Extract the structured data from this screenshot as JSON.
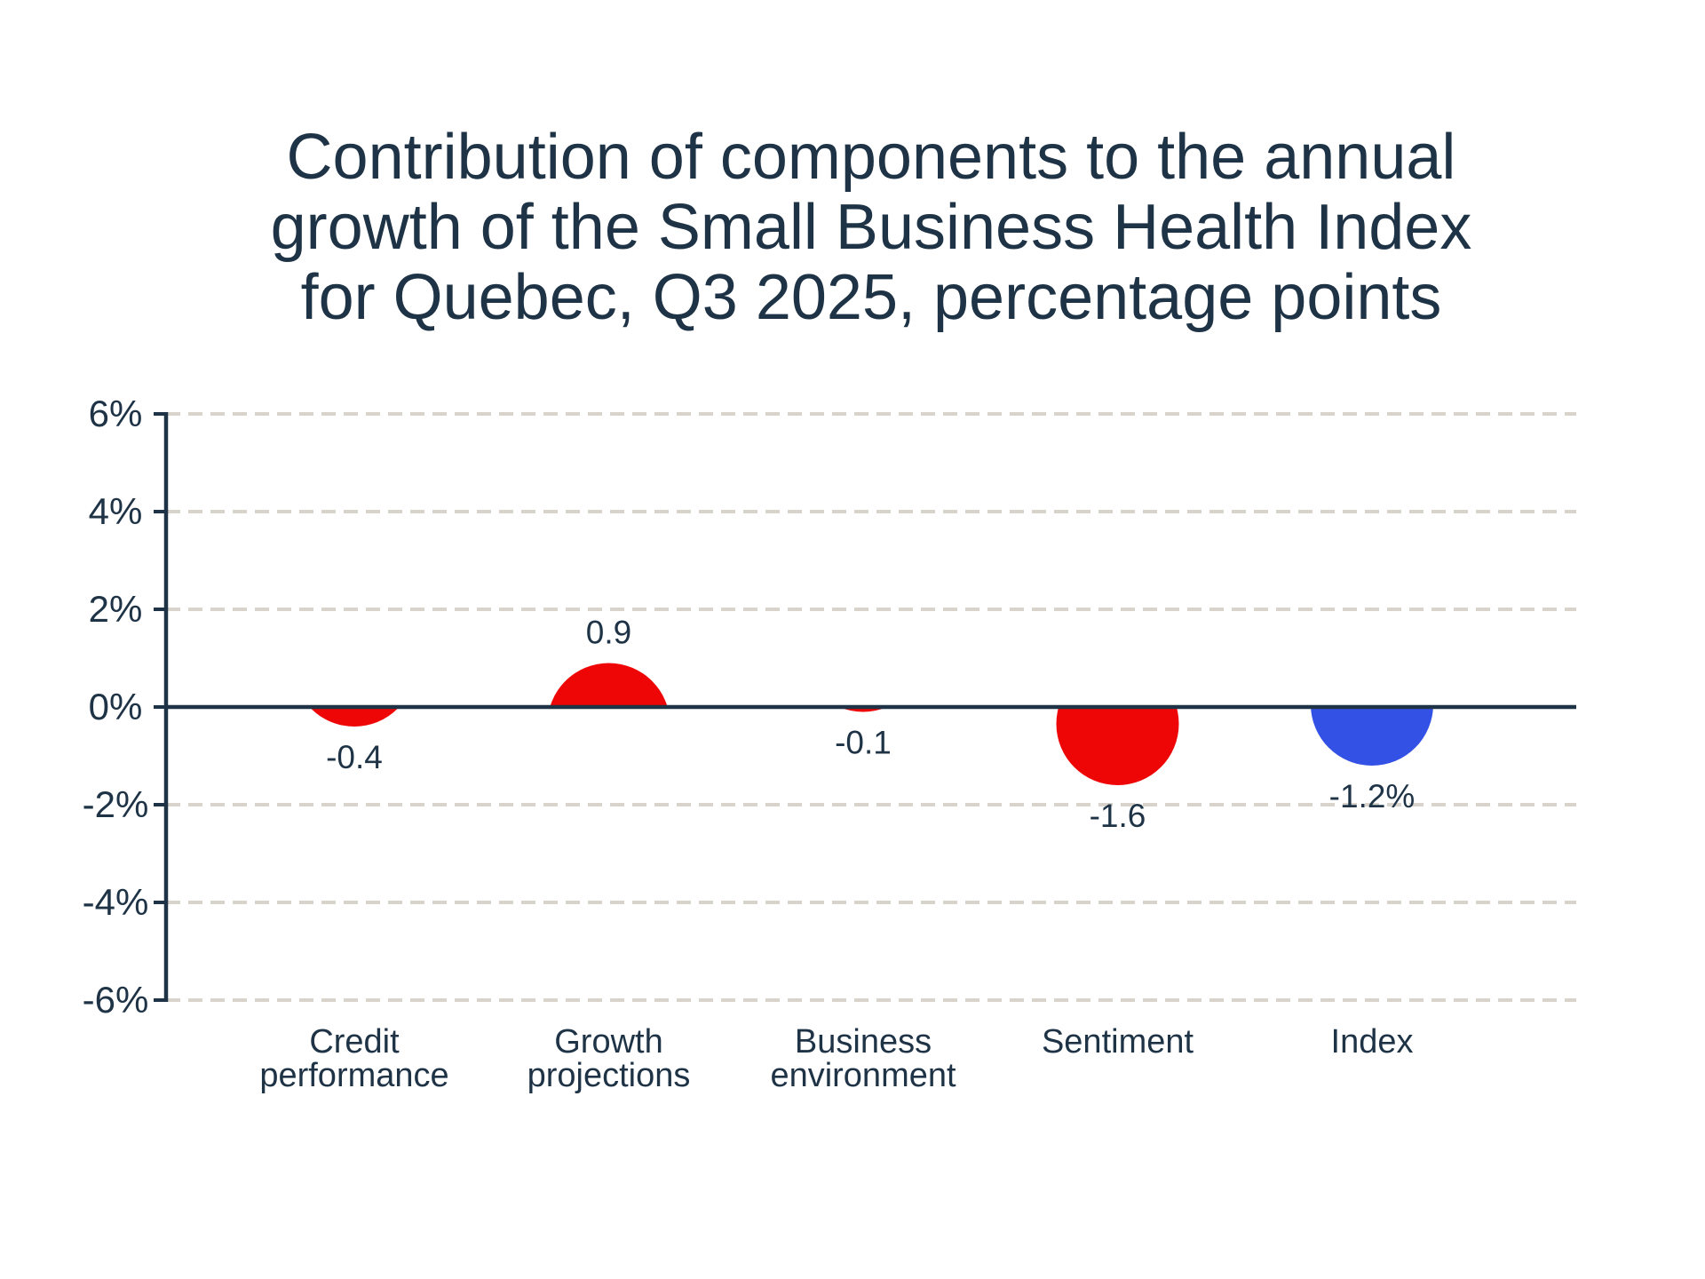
{
  "title": {
    "lines": [
      "Contribution of components to the annual",
      "growth of the Small Business Health Index",
      "for Quebec, Q3 2025, percentage points"
    ]
  },
  "chart_data": {
    "type": "bubble",
    "title": "Contribution of components to the annual growth of the Small Business Health Index for Quebec, Q3 2025, percentage points",
    "unit": "percentage points",
    "categories": [
      "Credit performance",
      "Growth projections",
      "Business environment",
      "Sentiment",
      "Index"
    ],
    "category_label_lines": [
      [
        "Credit",
        "performance"
      ],
      [
        "Growth",
        "projections"
      ],
      [
        "Business",
        "environment"
      ],
      [
        "Sentiment"
      ],
      [
        "Index"
      ]
    ],
    "values": [
      -0.4,
      0.9,
      -0.1,
      -1.6,
      -1.2
    ],
    "point_labels": [
      "-0.4",
      "0.9",
      "-0.1",
      "-1.6",
      "-1.2%"
    ],
    "point_colors": [
      "#ee0606",
      "#ee0606",
      "#ee0606",
      "#ee0606",
      "#3351e5"
    ],
    "y_ticks": [
      {
        "label": "6%",
        "value": 6
      },
      {
        "label": "4%",
        "value": 4
      },
      {
        "label": "2%",
        "value": 2
      },
      {
        "label": "0%",
        "value": 0
      },
      {
        "label": "-2%",
        "value": -2
      },
      {
        "label": "-4%",
        "value": -4
      },
      {
        "label": "-6%",
        "value": -6
      }
    ],
    "ylim": [
      -6,
      6
    ],
    "grid": "dashed horizontal",
    "legend": "none",
    "baseline_at": 0
  },
  "colors": {
    "text": "#1e3346",
    "axis": "#1e3346",
    "gridline": "#d8d3cb",
    "component_red": "#ee0606",
    "index_blue": "#3351e5",
    "background": "#ffffff"
  }
}
